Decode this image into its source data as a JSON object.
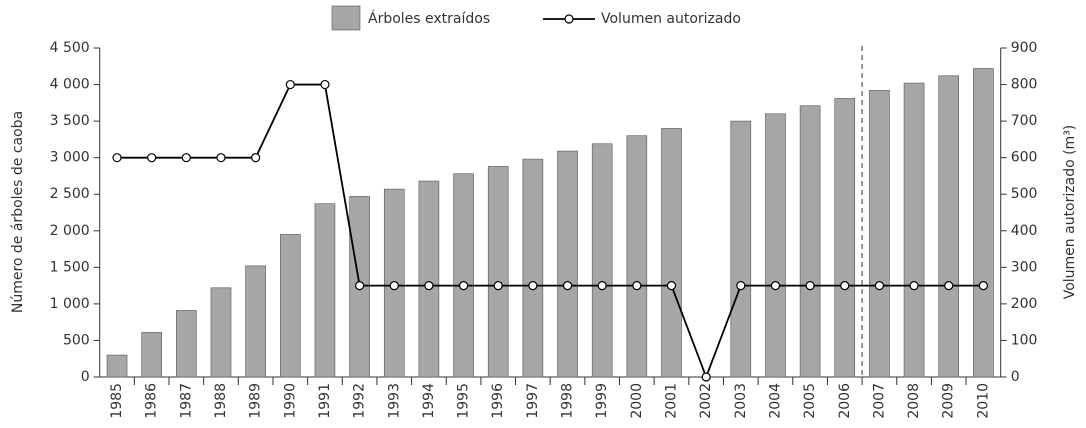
{
  "chart_data": {
    "type": "bar-line",
    "categories": [
      "1985",
      "1986",
      "1987",
      "1988",
      "1989",
      "1990",
      "1991",
      "1992",
      "1993",
      "1994",
      "1995",
      "1996",
      "1997",
      "1998",
      "1999",
      "2000",
      "2001",
      "2002",
      "2003",
      "2004",
      "2005",
      "2006",
      "2007",
      "2008",
      "2009",
      "2010"
    ],
    "series": [
      {
        "name": "Árboles extraídos",
        "type": "bar",
        "color": "#a6a6a6",
        "values": [
          300,
          610,
          910,
          1220,
          1520,
          1950,
          2370,
          2470,
          2570,
          2680,
          2780,
          2880,
          2980,
          3090,
          3190,
          3300,
          3400,
          null,
          3500,
          3600,
          3710,
          3810,
          3920,
          4020,
          4120,
          4220
        ]
      },
      {
        "name": "Volumen autorizado",
        "type": "line",
        "axis": "y2",
        "color": "#000000",
        "values": [
          600,
          600,
          600,
          600,
          600,
          800,
          800,
          250,
          250,
          250,
          250,
          250,
          250,
          250,
          250,
          250,
          250,
          0,
          250,
          250,
          250,
          250,
          250,
          250,
          250,
          250
        ]
      }
    ],
    "ylabel": "Número de árboles de caoba",
    "y2label": "Volumen autorizado (m³)",
    "ylim": [
      0,
      4500
    ],
    "yticks": [
      0,
      500,
      {
        "value": 1000,
        "label": "1 000"
      },
      {
        "value": 1500,
        "label": "1 500"
      },
      {
        "value": 2000,
        "label": "2 000"
      },
      {
        "value": 2500,
        "label": "2 500"
      },
      {
        "value": 3000,
        "label": "3 000"
      },
      {
        "value": 3500,
        "label": "3 500"
      },
      {
        "value": 4000,
        "label": "4 000"
      },
      {
        "value": 4500,
        "label": "4 500"
      }
    ],
    "y2lim": [
      0,
      900
    ],
    "y2ticks": [
      0,
      100,
      200,
      300,
      400,
      500,
      600,
      700,
      800,
      900
    ]
  }
}
